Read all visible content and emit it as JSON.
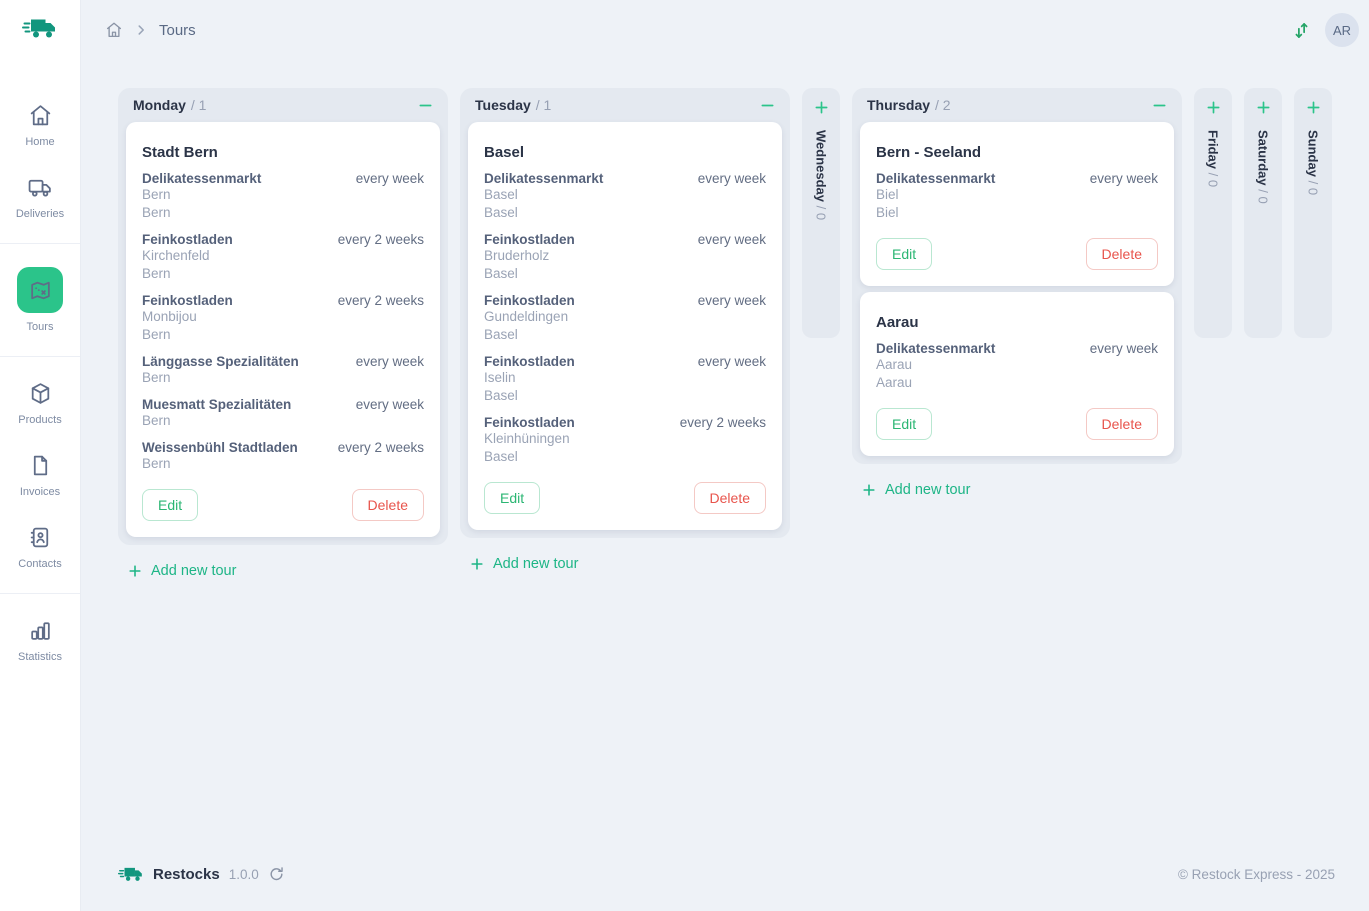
{
  "topbar": {
    "breadcrumb": "Tours",
    "avatar": "AR"
  },
  "sidebar": {
    "items": [
      {
        "label": "Home",
        "icon": "home-icon",
        "active": false
      },
      {
        "label": "Deliveries",
        "icon": "truck-icon",
        "active": false
      },
      {
        "label": "Tours",
        "icon": "map-icon",
        "active": true
      },
      {
        "label": "Products",
        "icon": "box-icon",
        "active": false
      },
      {
        "label": "Invoices",
        "icon": "invoice-icon",
        "active": false
      },
      {
        "label": "Contacts",
        "icon": "contacts-icon",
        "active": false
      },
      {
        "label": "Statistics",
        "icon": "statistics-icon",
        "active": false
      }
    ]
  },
  "labels": {
    "edit": "Edit",
    "delete": "Delete",
    "add_tour": "Add new tour"
  },
  "board": {
    "columns": [
      {
        "day": "Monday",
        "count_label": "/ 1",
        "collapsed": false,
        "tours": [
          {
            "title": "Stadt Bern",
            "stops": [
              {
                "name": "Delikatessenmarkt",
                "frequency": "every week",
                "lines": [
                  "Bern",
                  "Bern"
                ]
              },
              {
                "name": "Feinkostladen",
                "frequency": "every 2 weeks",
                "lines": [
                  "Kirchenfeld",
                  "Bern"
                ]
              },
              {
                "name": "Feinkostladen",
                "frequency": "every 2 weeks",
                "lines": [
                  "Monbijou",
                  "Bern"
                ]
              },
              {
                "name": "Länggasse Spezialitäten",
                "frequency": "every week",
                "lines": [
                  "Bern"
                ]
              },
              {
                "name": "Muesmatt Spezialitäten",
                "frequency": "every week",
                "lines": [
                  "Bern"
                ]
              },
              {
                "name": "Weissenbühl Stadtladen",
                "frequency": "every 2 weeks",
                "lines": [
                  "Bern"
                ]
              }
            ]
          }
        ]
      },
      {
        "day": "Tuesday",
        "count_label": "/ 1",
        "collapsed": false,
        "tours": [
          {
            "title": "Basel",
            "stops": [
              {
                "name": "Delikatessenmarkt",
                "frequency": "every week",
                "lines": [
                  "Basel",
                  "Basel"
                ]
              },
              {
                "name": "Feinkostladen",
                "frequency": "every week",
                "lines": [
                  "Bruderholz",
                  "Basel"
                ]
              },
              {
                "name": "Feinkostladen",
                "frequency": "every week",
                "lines": [
                  "Gundeldingen",
                  "Basel"
                ]
              },
              {
                "name": "Feinkostladen",
                "frequency": "every week",
                "lines": [
                  "Iselin",
                  "Basel"
                ]
              },
              {
                "name": "Feinkostladen",
                "frequency": "every 2 weeks",
                "lines": [
                  "Kleinhüningen",
                  "Basel"
                ]
              }
            ]
          }
        ]
      },
      {
        "day": "Wednesday",
        "count_label": "/ 0",
        "collapsed": true,
        "tours": []
      },
      {
        "day": "Thursday",
        "count_label": "/ 2",
        "collapsed": false,
        "tours": [
          {
            "title": "Bern - Seeland",
            "stops": [
              {
                "name": "Delikatessenmarkt",
                "frequency": "every week",
                "lines": [
                  "Biel",
                  "Biel"
                ]
              }
            ]
          },
          {
            "title": "Aarau",
            "stops": [
              {
                "name": "Delikatessenmarkt",
                "frequency": "every week",
                "lines": [
                  "Aarau",
                  "Aarau"
                ]
              }
            ]
          }
        ]
      },
      {
        "day": "Friday",
        "count_label": "/ 0",
        "collapsed": true,
        "tours": []
      },
      {
        "day": "Saturday",
        "count_label": "/ 0",
        "collapsed": true,
        "tours": []
      },
      {
        "day": "Sunday",
        "count_label": "/ 0",
        "collapsed": true,
        "tours": []
      }
    ]
  },
  "footer": {
    "brand": "Restocks",
    "version": "1.0.0",
    "copyright": "© Restock Express - 2025"
  },
  "colors": {
    "accent_green": "#2bc48a",
    "danger_red": "#e8544c",
    "brand_teal": "#12967e",
    "page_bg": "#eef2f7",
    "column_bg": "#e4e9f0"
  }
}
